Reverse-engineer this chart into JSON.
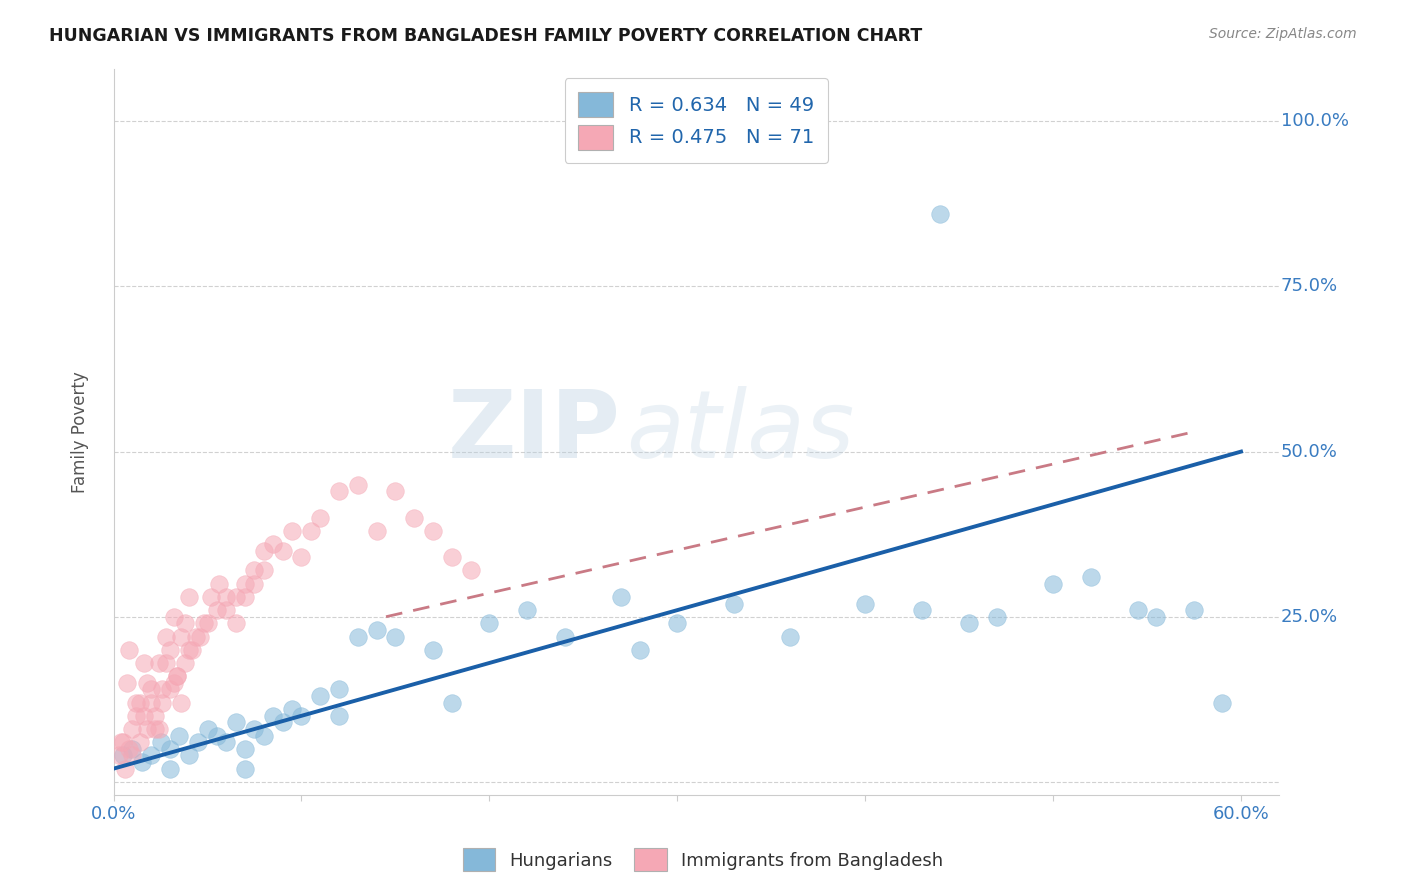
{
  "title": "HUNGARIAN VS IMMIGRANTS FROM BANGLADESH FAMILY POVERTY CORRELATION CHART",
  "source": "Source: ZipAtlas.com",
  "ylabel": "Family Poverty",
  "xlim": [
    0.0,
    0.62
  ],
  "ylim": [
    -0.02,
    1.08
  ],
  "background_color": "#ffffff",
  "grid_color": "#cccccc",
  "blue_color": "#85b8d9",
  "pink_color": "#f5a8b5",
  "blue_line_color": "#1a5fa8",
  "pink_line_color": "#c97a85",
  "legend_label_blue": "Hungarians",
  "legend_label_pink": "Immigrants from Bangladesh",
  "watermark_zip": "ZIP",
  "watermark_atlas": "atlas",
  "blue_line_x": [
    0.0,
    0.6
  ],
  "blue_line_y": [
    0.02,
    0.5
  ],
  "pink_line_x": [
    0.145,
    0.575
  ],
  "pink_line_y": [
    0.25,
    0.53
  ],
  "blue_x": [
    0.005,
    0.01,
    0.015,
    0.02,
    0.025,
    0.03,
    0.035,
    0.04,
    0.045,
    0.05,
    0.055,
    0.06,
    0.065,
    0.07,
    0.075,
    0.08,
    0.085,
    0.09,
    0.095,
    0.1,
    0.11,
    0.12,
    0.13,
    0.14,
    0.15,
    0.17,
    0.2,
    0.22,
    0.24,
    0.27,
    0.3,
    0.33,
    0.36,
    0.4,
    0.43,
    0.455,
    0.47,
    0.5,
    0.52,
    0.545,
    0.555,
    0.575,
    0.59,
    0.03,
    0.07,
    0.12,
    0.18,
    0.28,
    0.44
  ],
  "blue_y": [
    0.04,
    0.05,
    0.03,
    0.04,
    0.06,
    0.05,
    0.07,
    0.04,
    0.06,
    0.08,
    0.07,
    0.06,
    0.09,
    0.05,
    0.08,
    0.07,
    0.1,
    0.09,
    0.11,
    0.1,
    0.13,
    0.14,
    0.22,
    0.23,
    0.22,
    0.2,
    0.24,
    0.26,
    0.22,
    0.28,
    0.24,
    0.27,
    0.22,
    0.27,
    0.26,
    0.24,
    0.25,
    0.3,
    0.31,
    0.26,
    0.25,
    0.26,
    0.12,
    0.02,
    0.02,
    0.1,
    0.12,
    0.2,
    0.86
  ],
  "pink_x": [
    0.003,
    0.005,
    0.007,
    0.008,
    0.01,
    0.012,
    0.014,
    0.016,
    0.018,
    0.02,
    0.022,
    0.024,
    0.026,
    0.028,
    0.03,
    0.032,
    0.034,
    0.036,
    0.038,
    0.04,
    0.004,
    0.008,
    0.012,
    0.016,
    0.02,
    0.024,
    0.028,
    0.032,
    0.036,
    0.04,
    0.044,
    0.048,
    0.052,
    0.056,
    0.06,
    0.065,
    0.07,
    0.075,
    0.08,
    0.085,
    0.09,
    0.095,
    0.1,
    0.105,
    0.11,
    0.12,
    0.13,
    0.14,
    0.15,
    0.16,
    0.17,
    0.18,
    0.19,
    0.006,
    0.01,
    0.014,
    0.018,
    0.022,
    0.026,
    0.03,
    0.034,
    0.038,
    0.042,
    0.046,
    0.05,
    0.055,
    0.06,
    0.065,
    0.07,
    0.075,
    0.08
  ],
  "pink_y": [
    0.04,
    0.06,
    0.15,
    0.2,
    0.08,
    0.1,
    0.12,
    0.18,
    0.15,
    0.12,
    0.08,
    0.18,
    0.14,
    0.22,
    0.2,
    0.25,
    0.16,
    0.22,
    0.24,
    0.28,
    0.06,
    0.05,
    0.12,
    0.1,
    0.14,
    0.08,
    0.18,
    0.15,
    0.12,
    0.2,
    0.22,
    0.24,
    0.28,
    0.3,
    0.26,
    0.24,
    0.28,
    0.3,
    0.32,
    0.36,
    0.35,
    0.38,
    0.34,
    0.38,
    0.4,
    0.44,
    0.45,
    0.38,
    0.44,
    0.4,
    0.38,
    0.34,
    0.32,
    0.02,
    0.04,
    0.06,
    0.08,
    0.1,
    0.12,
    0.14,
    0.16,
    0.18,
    0.2,
    0.22,
    0.24,
    0.26,
    0.28,
    0.28,
    0.3,
    0.32,
    0.35
  ]
}
